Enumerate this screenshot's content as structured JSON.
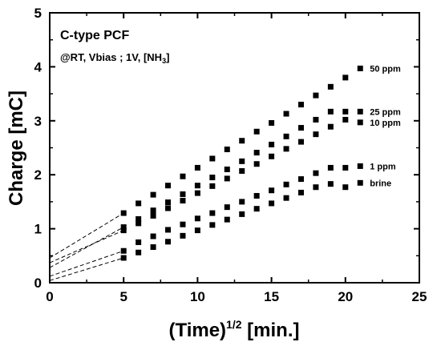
{
  "chart_data": {
    "type": "scatter",
    "annotation_title": "C-type PCF",
    "annotation_conditions": "@RT, Vbias ; 1V,  [NH",
    "annotation_conditions_sub": "3",
    "annotation_conditions_end": "]",
    "xlabel_main": "(Time)",
    "xlabel_sup": "1/2",
    "xlabel_unit": " [min.]",
    "ylabel": "Charge [mC]",
    "xlim": [
      0,
      25
    ],
    "ylim": [
      0,
      5
    ],
    "x_ticks": [
      "0",
      "5",
      "10",
      "15",
      "20",
      "25"
    ],
    "y_ticks": [
      "0",
      "1",
      "2",
      "3",
      "4",
      "5"
    ],
    "x": [
      5,
      6,
      7,
      8,
      9,
      10,
      11,
      12,
      13,
      14,
      15,
      16,
      17,
      18,
      19,
      20,
      21
    ],
    "series": [
      {
        "name": "50 ppm",
        "values": [
          1.29,
          1.47,
          1.63,
          1.8,
          1.97,
          2.13,
          2.3,
          2.47,
          2.63,
          2.8,
          2.96,
          3.13,
          3.3,
          3.47,
          3.63,
          3.8,
          3.97
        ],
        "intercept": 0.46
      },
      {
        "name": "25 ppm",
        "values": [
          1.03,
          1.18,
          1.34,
          1.49,
          1.64,
          1.8,
          1.95,
          2.1,
          2.25,
          2.41,
          2.56,
          2.71,
          2.87,
          3.02,
          3.17,
          3.17,
          3.17
        ],
        "intercept": 0.28
      },
      {
        "name": "10 ppm",
        "values": [
          0.97,
          1.1,
          1.24,
          1.38,
          1.52,
          1.66,
          1.79,
          1.93,
          2.07,
          2.2,
          2.34,
          2.48,
          2.61,
          2.75,
          2.89,
          3.02,
          2.97
        ],
        "intercept": 0.37
      },
      {
        "name": "1 ppm",
        "values": [
          0.59,
          0.75,
          0.86,
          0.98,
          1.08,
          1.19,
          1.29,
          1.4,
          1.5,
          1.61,
          1.71,
          1.82,
          1.92,
          2.03,
          2.13,
          2.13,
          2.16
        ],
        "intercept": 0.12
      },
      {
        "name": "brine",
        "values": [
          0.46,
          0.56,
          0.66,
          0.76,
          0.87,
          0.97,
          1.07,
          1.17,
          1.27,
          1.37,
          1.47,
          1.57,
          1.67,
          1.77,
          1.83,
          1.77,
          1.85
        ],
        "intercept": 0.04
      }
    ]
  }
}
